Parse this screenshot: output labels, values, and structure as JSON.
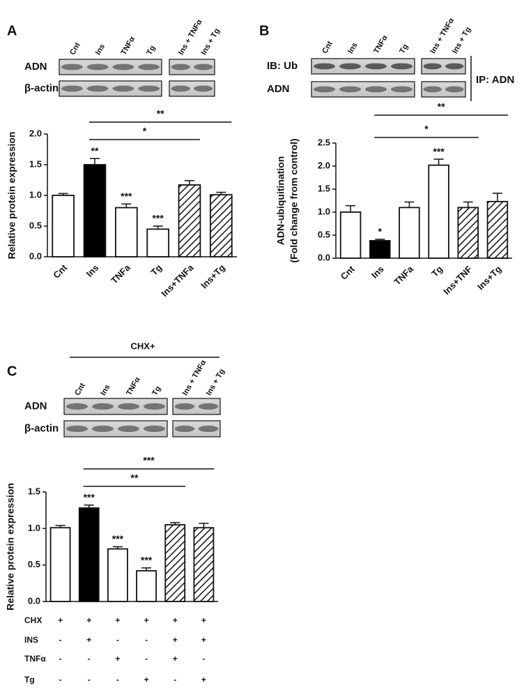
{
  "chart_data": [
    {
      "type": "bar",
      "panel_label": "A",
      "blot": {
        "lanes": [
          "Cnt",
          "Ins",
          "TNFα",
          "Tg",
          "Ins + TNFα",
          "Ins + Tg"
        ],
        "rows": [
          "ADN",
          "β-actin"
        ]
      },
      "y_label": [
        "Relative protein expression"
      ],
      "categories": [
        "Cnt",
        "Ins",
        "TNFa",
        "Tg",
        "Ins+TNFa",
        "Ins+Tg"
      ],
      "values": [
        1.0,
        1.5,
        0.8,
        0.45,
        1.17,
        1.01
      ],
      "errors": [
        0.03,
        0.1,
        0.06,
        0.05,
        0.07,
        0.04
      ],
      "fills": [
        "white",
        "black",
        "white",
        "white",
        "hatch",
        "hatch"
      ],
      "bar_labels": [
        null,
        "**",
        "***",
        "***",
        null,
        null
      ],
      "brackets": [
        {
          "from": "Ins",
          "to": "Ins + TNFα",
          "label": "*"
        },
        {
          "from": "Ins",
          "to": "Ins + Tg",
          "label": "**"
        }
      ],
      "ylim": [
        0,
        2
      ],
      "yticks": [
        {
          "value": 0,
          "label": "0.0"
        },
        {
          "value": 0.5,
          "label": "0.5"
        },
        {
          "value": 1,
          "label": "1.0"
        },
        {
          "value": 1.5,
          "label": "1.5"
        },
        {
          "value": 2,
          "label": "2.0"
        }
      ]
    },
    {
      "type": "bar",
      "panel_label": "B",
      "blot": {
        "lanes": [
          "Cnt",
          "Ins",
          "TNFα",
          "Tg",
          "Ins + TNFα",
          "Ins + Tg"
        ],
        "rows": [
          "IB: Ub",
          "ADN"
        ],
        "ip_label": "IP: ADN"
      },
      "y_label": [
        "ADN-ubiquitination",
        "(Fold change from control)"
      ],
      "categories": [
        "Cnt",
        "Ins",
        "TNFa",
        "Tg",
        "Ins+TNF",
        "Ins+Tg"
      ],
      "values": [
        1.0,
        0.38,
        1.1,
        2.02,
        1.1,
        1.23
      ],
      "errors": [
        0.14,
        0.03,
        0.12,
        0.13,
        0.12,
        0.18
      ],
      "fills": [
        "white",
        "black",
        "white",
        "white",
        "hatch",
        "hatch"
      ],
      "bar_labels": [
        null,
        "*",
        null,
        "***",
        null,
        null
      ],
      "brackets": [
        {
          "from": "Ins",
          "to": "Ins + TNFα",
          "label": "*"
        },
        {
          "from": "Ins",
          "to": "Ins + Tg",
          "label": "**"
        }
      ],
      "ylim": [
        0,
        2.5
      ],
      "yticks": [
        {
          "value": 0,
          "label": "0.0"
        },
        {
          "value": 0.5,
          "label": "0.5"
        },
        {
          "value": 1,
          "label": "1.0"
        },
        {
          "value": 1.5,
          "label": "1.5"
        },
        {
          "value": 2,
          "label": "2.0"
        },
        {
          "value": 2.5,
          "label": "2.5"
        }
      ]
    },
    {
      "type": "bar",
      "panel_label": "C",
      "header": "CHX+",
      "blot": {
        "lanes": [
          "Cnt",
          "Ins",
          "TNFα",
          "Tg",
          "Ins + TNFα",
          "Ins + Tg"
        ],
        "rows": [
          "ADN",
          "β-actin"
        ]
      },
      "y_label": [
        "Relative protein expression"
      ],
      "values": [
        1.01,
        1.28,
        0.72,
        0.42,
        1.05,
        1.01
      ],
      "errors": [
        0.03,
        0.04,
        0.03,
        0.04,
        0.03,
        0.06
      ],
      "fills": [
        "white",
        "black",
        "white",
        "white",
        "hatch",
        "hatch"
      ],
      "bar_labels": [
        null,
        "***",
        "***",
        "***",
        null,
        null
      ],
      "brackets": [
        {
          "from": "Ins",
          "to": "Ins + TNFα",
          "label": "**"
        },
        {
          "from": "Ins",
          "to": "Ins + Tg",
          "label": "***"
        }
      ],
      "treatments": [
        {
          "name": "CHX",
          "marks": [
            "+",
            "+",
            "+",
            "+",
            "+",
            "+"
          ]
        },
        {
          "name": "INS",
          "marks": [
            "-",
            "+",
            "-",
            "-",
            "+",
            "+"
          ]
        },
        {
          "name": "TNFα",
          "marks": [
            "-",
            "-",
            "+",
            "-",
            "+",
            "-"
          ]
        },
        {
          "name": "Tg",
          "marks": [
            "-",
            "-",
            "-",
            "+",
            "-",
            "+"
          ]
        }
      ],
      "ylim": [
        0,
        1.5
      ],
      "yticks": [
        {
          "value": 0,
          "label": "0.0"
        },
        {
          "value": 0.5,
          "label": "0.5"
        },
        {
          "value": 1,
          "label": "1.0"
        },
        {
          "value": 1.5,
          "label": "1.5"
        }
      ]
    }
  ]
}
